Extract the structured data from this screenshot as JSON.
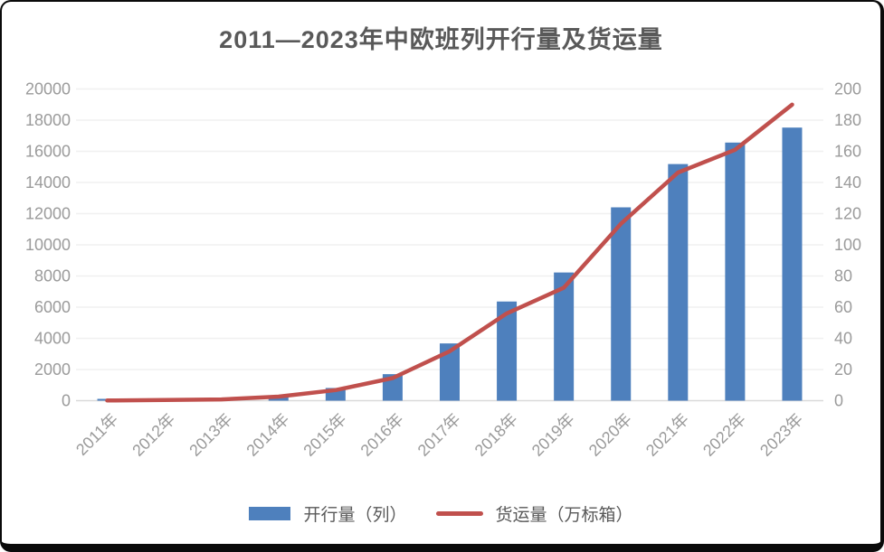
{
  "chart": {
    "title": "2011—2023年中欧班列开行量及货运量",
    "legend": {
      "bars": "开行量（列）",
      "line": "货运量（万标箱）"
    },
    "colors": {
      "bar": "#4e80bd",
      "line": "#c0504d",
      "axis_text": "#9b9b9b",
      "title_text": "#595959",
      "gridline": "#f0f0f0",
      "baseline": "#d9d9d9"
    }
  },
  "chart_data": {
    "type": "bar",
    "subtype": "combo-bar-line",
    "title": "2011—2023年中欧班列开行量及货运量",
    "categories": [
      "2011年",
      "2012年",
      "2013年",
      "2014年",
      "2015年",
      "2016年",
      "2017年",
      "2018年",
      "2019年",
      "2020年",
      "2021年",
      "2022年",
      "2023年"
    ],
    "series": [
      {
        "name": "开行量（列）",
        "type": "bar",
        "axis": "left",
        "color": "#4e80bd",
        "values": [
          17,
          42,
          80,
          308,
          815,
          1702,
          3673,
          6363,
          8225,
          12406,
          15183,
          16562,
          17523
        ]
      },
      {
        "name": "货运量（万标箱）",
        "type": "line",
        "axis": "right",
        "color": "#c0504d",
        "values": [
          0.1,
          0.4,
          0.8,
          2.6,
          6.8,
          14.5,
          31.7,
          56,
          72.5,
          113.5,
          146.4,
          161,
          190
        ]
      }
    ],
    "left_axis": {
      "label": "",
      "min": 0,
      "max": 20000,
      "step": 2000,
      "ticks": [
        0,
        2000,
        4000,
        6000,
        8000,
        10000,
        12000,
        14000,
        16000,
        18000,
        20000
      ]
    },
    "right_axis": {
      "label": "",
      "min": 0,
      "max": 200,
      "step": 20,
      "ticks": [
        0,
        20,
        40,
        60,
        80,
        100,
        120,
        140,
        160,
        180,
        200
      ]
    },
    "grid": true,
    "legend_position": "bottom",
    "x_tick_rotation": -45
  }
}
